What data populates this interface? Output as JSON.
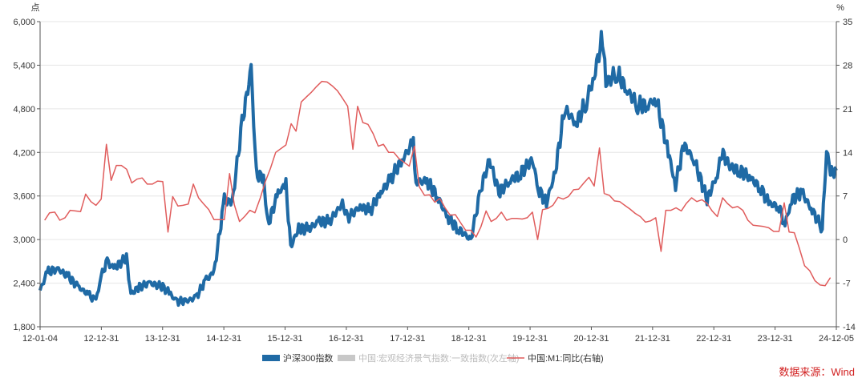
{
  "chart_data": {
    "type": "line",
    "left_unit": "点",
    "right_unit": "%",
    "x_tick_labels": [
      "12-01-04",
      "12-12-31",
      "13-12-31",
      "14-12-31",
      "15-12-31",
      "16-12-31",
      "17-12-31",
      "18-12-31",
      "19-12-31",
      "20-12-31",
      "21-12-31",
      "22-12-31",
      "23-12-31",
      "24-12-05"
    ],
    "y_left": {
      "min": 1800,
      "max": 6000,
      "ticks": [
        1800,
        2400,
        3000,
        3600,
        4200,
        4800,
        5400,
        6000
      ],
      "tick_labels": [
        "1,800",
        "2,400",
        "3,000",
        "3,600",
        "4,200",
        "4,800",
        "5,400",
        "6,000"
      ]
    },
    "y_right": {
      "min": -14,
      "max": 35,
      "ticks": [
        -14,
        -7,
        0,
        7,
        14,
        21,
        28,
        35
      ],
      "tick_labels": [
        "-14",
        "-7",
        "0",
        "7",
        "14",
        "21",
        "28",
        "35"
      ]
    },
    "legend_position": "bottom",
    "series": [
      {
        "name": "沪深300指数",
        "axis": "left",
        "color": "#1f6aa5",
        "points": [
          [
            "2012-01-04",
            2300
          ],
          [
            "2012-02-15",
            2550
          ],
          [
            "2012-04-15",
            2600
          ],
          [
            "2012-06-15",
            2500
          ],
          [
            "2012-08-15",
            2350
          ],
          [
            "2012-10-15",
            2250
          ],
          [
            "2012-11-30",
            2150
          ],
          [
            "2012-12-31",
            2500
          ],
          [
            "2013-02-05",
            2700
          ],
          [
            "2013-03-15",
            2600
          ],
          [
            "2013-05-30",
            2750
          ],
          [
            "2013-06-25",
            2250
          ],
          [
            "2013-08-15",
            2350
          ],
          [
            "2013-10-15",
            2400
          ],
          [
            "2013-12-31",
            2350
          ],
          [
            "2014-02-15",
            2250
          ],
          [
            "2014-03-20",
            2150
          ],
          [
            "2014-05-15",
            2150
          ],
          [
            "2014-07-15",
            2200
          ],
          [
            "2014-09-15",
            2450
          ],
          [
            "2014-10-31",
            2550
          ],
          [
            "2014-12-31",
            3550
          ],
          [
            "2015-02-15",
            3500
          ],
          [
            "2015-04-15",
            4600
          ],
          [
            "2015-06-08",
            5350
          ],
          [
            "2015-07-08",
            3900
          ],
          [
            "2015-08-20",
            3850
          ],
          [
            "2015-09-15",
            3200
          ],
          [
            "2015-11-15",
            3650
          ],
          [
            "2015-12-31",
            3750
          ],
          [
            "2016-01-28",
            2900
          ],
          [
            "2016-03-15",
            3150
          ],
          [
            "2016-05-15",
            3150
          ],
          [
            "2016-07-15",
            3250
          ],
          [
            "2016-09-15",
            3250
          ],
          [
            "2016-11-30",
            3500
          ],
          [
            "2016-12-31",
            3300
          ],
          [
            "2017-03-15",
            3450
          ],
          [
            "2017-05-15",
            3400
          ],
          [
            "2017-07-15",
            3650
          ],
          [
            "2017-09-15",
            3850
          ],
          [
            "2017-11-20",
            4100
          ],
          [
            "2018-01-24",
            4350
          ],
          [
            "2018-02-09",
            3800
          ],
          [
            "2018-04-15",
            3800
          ],
          [
            "2018-06-15",
            3600
          ],
          [
            "2018-08-15",
            3300
          ],
          [
            "2018-10-15",
            3150
          ],
          [
            "2018-12-31",
            3000
          ],
          [
            "2019-02-28",
            3700
          ],
          [
            "2019-04-20",
            4100
          ],
          [
            "2019-06-15",
            3650
          ],
          [
            "2019-08-15",
            3800
          ],
          [
            "2019-10-15",
            3900
          ],
          [
            "2019-12-31",
            4100
          ],
          [
            "2020-02-03",
            3700
          ],
          [
            "2020-03-23",
            3500
          ],
          [
            "2020-05-15",
            3950
          ],
          [
            "2020-07-09",
            4800
          ],
          [
            "2020-09-15",
            4600
          ],
          [
            "2020-11-15",
            4900
          ],
          [
            "2020-12-31",
            5250
          ],
          [
            "2021-02-18",
            5800
          ],
          [
            "2021-03-10",
            5150
          ],
          [
            "2021-05-15",
            5300
          ],
          [
            "2021-07-15",
            5050
          ],
          [
            "2021-09-15",
            4850
          ],
          [
            "2021-11-15",
            4850
          ],
          [
            "2021-12-31",
            4950
          ],
          [
            "2022-03-15",
            4200
          ],
          [
            "2022-04-27",
            3750
          ],
          [
            "2022-06-15",
            4300
          ],
          [
            "2022-08-15",
            4100
          ],
          [
            "2022-10-31",
            3550
          ],
          [
            "2022-12-31",
            3900
          ],
          [
            "2023-01-27",
            4200
          ],
          [
            "2023-03-15",
            4000
          ],
          [
            "2023-05-15",
            3950
          ],
          [
            "2023-07-15",
            3850
          ],
          [
            "2023-09-15",
            3700
          ],
          [
            "2023-10-31",
            3500
          ],
          [
            "2023-12-31",
            3450
          ],
          [
            "2024-02-05",
            3200
          ],
          [
            "2024-03-15",
            3550
          ],
          [
            "2024-05-15",
            3650
          ],
          [
            "2024-07-15",
            3400
          ],
          [
            "2024-09-13",
            3150
          ],
          [
            "2024-10-08",
            4250
          ],
          [
            "2024-10-31",
            3900
          ],
          [
            "2024-12-05",
            3950
          ]
        ]
      },
      {
        "name": "中国:宏观经济景气指数:一致指数(次左轴)",
        "axis": "left",
        "color": "#c8c8c8",
        "points": []
      },
      {
        "name": "中国:M1:同比(右轴)",
        "axis": "right",
        "color": "#e05c5c",
        "points": [
          [
            "2012-01-31",
            3.1
          ],
          [
            "2012-02-29",
            4.3
          ],
          [
            "2012-03-31",
            4.4
          ],
          [
            "2012-04-30",
            3.1
          ],
          [
            "2012-05-31",
            3.5
          ],
          [
            "2012-06-30",
            4.7
          ],
          [
            "2012-07-31",
            4.6
          ],
          [
            "2012-08-31",
            4.5
          ],
          [
            "2012-09-30",
            7.3
          ],
          [
            "2012-10-31",
            6.1
          ],
          [
            "2012-11-30",
            5.5
          ],
          [
            "2012-12-31",
            6.5
          ],
          [
            "2013-01-31",
            15.3
          ],
          [
            "2013-02-28",
            9.5
          ],
          [
            "2013-03-31",
            11.9
          ],
          [
            "2013-04-30",
            11.9
          ],
          [
            "2013-05-31",
            11.3
          ],
          [
            "2013-06-30",
            9.1
          ],
          [
            "2013-07-31",
            9.7
          ],
          [
            "2013-08-31",
            9.9
          ],
          [
            "2013-09-30",
            8.9
          ],
          [
            "2013-10-31",
            8.9
          ],
          [
            "2013-11-30",
            9.4
          ],
          [
            "2013-12-31",
            9.3
          ],
          [
            "2014-01-31",
            1.2
          ],
          [
            "2014-02-28",
            6.9
          ],
          [
            "2014-03-31",
            5.4
          ],
          [
            "2014-04-30",
            5.5
          ],
          [
            "2014-05-31",
            5.7
          ],
          [
            "2014-06-30",
            8.9
          ],
          [
            "2014-07-31",
            6.7
          ],
          [
            "2014-08-31",
            5.7
          ],
          [
            "2014-09-30",
            4.8
          ],
          [
            "2014-10-31",
            3.2
          ],
          [
            "2014-11-30",
            3.2
          ],
          [
            "2014-12-31",
            3.2
          ],
          [
            "2015-01-31",
            10.6
          ],
          [
            "2015-02-28",
            5.6
          ],
          [
            "2015-03-31",
            2.9
          ],
          [
            "2015-04-30",
            3.7
          ],
          [
            "2015-05-31",
            4.7
          ],
          [
            "2015-06-30",
            4.3
          ],
          [
            "2015-07-31",
            6.6
          ],
          [
            "2015-08-31",
            9.3
          ],
          [
            "2015-09-30",
            11.4
          ],
          [
            "2015-10-31",
            14.0
          ],
          [
            "2015-12-31",
            15.2
          ],
          [
            "2016-01-31",
            18.6
          ],
          [
            "2016-02-29",
            17.4
          ],
          [
            "2016-03-31",
            22.1
          ],
          [
            "2016-04-30",
            22.9
          ],
          [
            "2016-05-31",
            23.7
          ],
          [
            "2016-06-30",
            24.6
          ],
          [
            "2016-07-31",
            25.4
          ],
          [
            "2016-08-31",
            25.3
          ],
          [
            "2016-09-30",
            24.7
          ],
          [
            "2016-10-31",
            23.9
          ],
          [
            "2016-11-30",
            22.7
          ],
          [
            "2016-12-31",
            21.4
          ],
          [
            "2017-01-31",
            14.5
          ],
          [
            "2017-02-28",
            21.4
          ],
          [
            "2017-03-31",
            18.8
          ],
          [
            "2017-04-30",
            18.5
          ],
          [
            "2017-05-31",
            17.0
          ],
          [
            "2017-06-30",
            15.0
          ],
          [
            "2017-07-31",
            15.3
          ],
          [
            "2017-08-31",
            14.0
          ],
          [
            "2017-09-30",
            14.0
          ],
          [
            "2017-10-31",
            13.0
          ],
          [
            "2017-12-31",
            11.8
          ],
          [
            "2018-01-31",
            15.0
          ],
          [
            "2018-02-28",
            8.5
          ],
          [
            "2018-03-31",
            7.1
          ],
          [
            "2018-04-30",
            7.2
          ],
          [
            "2018-05-31",
            6.0
          ],
          [
            "2018-06-30",
            6.6
          ],
          [
            "2018-07-31",
            5.1
          ],
          [
            "2018-08-31",
            3.9
          ],
          [
            "2018-09-30",
            4.0
          ],
          [
            "2018-10-31",
            2.7
          ],
          [
            "2018-11-30",
            1.5
          ],
          [
            "2018-12-31",
            1.5
          ],
          [
            "2019-01-31",
            0.4
          ],
          [
            "2019-02-28",
            2.0
          ],
          [
            "2019-03-31",
            4.6
          ],
          [
            "2019-04-30",
            2.9
          ],
          [
            "2019-05-31",
            3.4
          ],
          [
            "2019-06-30",
            4.4
          ],
          [
            "2019-07-31",
            3.1
          ],
          [
            "2019-08-31",
            3.4
          ],
          [
            "2019-09-30",
            3.4
          ],
          [
            "2019-10-31",
            3.3
          ],
          [
            "2019-11-30",
            3.5
          ],
          [
            "2019-12-31",
            4.4
          ],
          [
            "2020-01-31",
            0.0
          ],
          [
            "2020-02-29",
            4.8
          ],
          [
            "2020-03-31",
            5.0
          ],
          [
            "2020-04-30",
            5.5
          ],
          [
            "2020-05-31",
            6.8
          ],
          [
            "2020-06-30",
            6.5
          ],
          [
            "2020-07-31",
            6.9
          ],
          [
            "2020-08-31",
            8.0
          ],
          [
            "2020-09-30",
            8.1
          ],
          [
            "2020-10-31",
            9.1
          ],
          [
            "2020-11-30",
            10.0
          ],
          [
            "2020-12-31",
            8.6
          ],
          [
            "2021-01-31",
            14.7
          ],
          [
            "2021-02-28",
            7.4
          ],
          [
            "2021-03-31",
            7.1
          ],
          [
            "2021-04-30",
            6.2
          ],
          [
            "2021-05-31",
            6.1
          ],
          [
            "2021-06-30",
            5.5
          ],
          [
            "2021-07-31",
            4.9
          ],
          [
            "2021-08-31",
            4.2
          ],
          [
            "2021-09-30",
            3.7
          ],
          [
            "2021-10-31",
            2.8
          ],
          [
            "2021-11-30",
            3.0
          ],
          [
            "2021-12-31",
            3.5
          ],
          [
            "2022-01-31",
            -1.9
          ],
          [
            "2022-02-28",
            4.7
          ],
          [
            "2022-03-31",
            4.7
          ],
          [
            "2022-04-30",
            5.1
          ],
          [
            "2022-05-31",
            4.6
          ],
          [
            "2022-06-30",
            5.8
          ],
          [
            "2022-07-31",
            6.7
          ],
          [
            "2022-08-31",
            6.1
          ],
          [
            "2022-09-30",
            6.4
          ],
          [
            "2022-10-31",
            5.8
          ],
          [
            "2022-11-30",
            4.6
          ],
          [
            "2022-12-31",
            3.7
          ],
          [
            "2023-01-31",
            6.7
          ],
          [
            "2023-02-28",
            5.8
          ],
          [
            "2023-03-31",
            5.1
          ],
          [
            "2023-04-30",
            5.3
          ],
          [
            "2023-05-31",
            4.7
          ],
          [
            "2023-06-30",
            3.1
          ],
          [
            "2023-07-31",
            2.3
          ],
          [
            "2023-08-31",
            2.2
          ],
          [
            "2023-09-30",
            2.1
          ],
          [
            "2023-10-31",
            1.9
          ],
          [
            "2023-11-30",
            1.3
          ],
          [
            "2023-12-31",
            1.3
          ],
          [
            "2024-01-31",
            5.9
          ],
          [
            "2024-02-29",
            1.2
          ],
          [
            "2024-03-31",
            1.1
          ],
          [
            "2024-04-30",
            -1.4
          ],
          [
            "2024-05-31",
            -4.2
          ],
          [
            "2024-06-30",
            -5.0
          ],
          [
            "2024-07-31",
            -6.6
          ],
          [
            "2024-08-31",
            -7.3
          ],
          [
            "2024-09-30",
            -7.4
          ],
          [
            "2024-10-31",
            -6.1
          ]
        ]
      }
    ]
  },
  "source_note": "数据来源：Wind",
  "colors": {
    "grid": "#e6e6e6",
    "axis": "#555555",
    "source": "#d11f1f"
  }
}
